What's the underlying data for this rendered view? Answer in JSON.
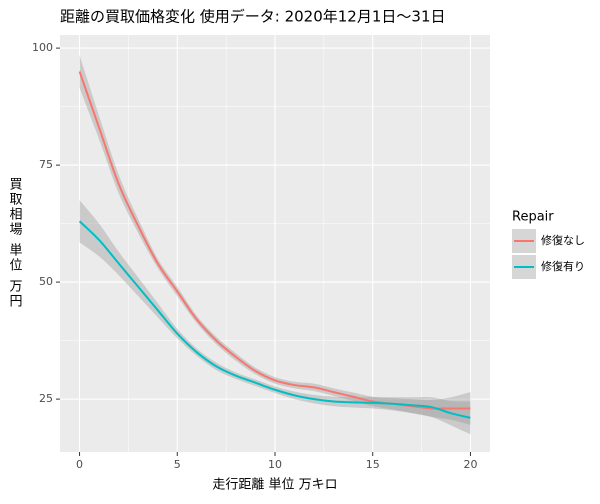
{
  "chart_data": {
    "type": "line",
    "title": "距離の買取価格変化 使用データ: 2020年12月1日〜31日",
    "x_label": "走行距離 単位 万キロ",
    "y_label": "買取相場 単位 万円",
    "x": [
      0,
      1,
      2,
      3,
      4,
      5,
      6,
      7,
      8,
      9,
      10,
      11,
      12,
      13,
      14,
      15,
      16,
      17,
      18,
      19,
      20
    ],
    "series": [
      {
        "name": "修復なし",
        "color": "#F8766D",
        "values": [
          95,
          83,
          71,
          62,
          54,
          48,
          42,
          37.5,
          34,
          31,
          29,
          28,
          27.5,
          26.5,
          25.5,
          24.5,
          24,
          23.5,
          23,
          23,
          23
        ],
        "lower": [
          91.5,
          80.5,
          69,
          60.5,
          53,
          47,
          41.2,
          36.7,
          33.2,
          30.3,
          28.3,
          27.3,
          26.7,
          25.7,
          24.6,
          23.5,
          22.8,
          22,
          21.2,
          20.6,
          19.5
        ],
        "upper": [
          98.5,
          85.5,
          73,
          63.5,
          55,
          49,
          42.8,
          38.3,
          34.8,
          31.7,
          29.7,
          28.7,
          28.3,
          27.3,
          26.4,
          25.5,
          25.2,
          25,
          24.8,
          25.4,
          26.5
        ]
      },
      {
        "name": "修復有り",
        "color": "#00BFC4",
        "values": [
          63,
          59,
          54,
          49,
          44,
          39,
          35,
          32,
          30,
          28.5,
          27,
          25.8,
          25,
          24.5,
          24.3,
          24.2,
          24,
          23.7,
          23.3,
          22,
          21
        ],
        "lower": [
          58.5,
          55.5,
          51.5,
          47,
          42.5,
          38,
          34.2,
          31.2,
          29.3,
          27.8,
          26.3,
          25,
          24.1,
          23.5,
          23.2,
          23,
          22.6,
          22,
          21.2,
          19.4,
          17.5
        ],
        "upper": [
          67.5,
          62.5,
          56.5,
          51,
          45.5,
          40,
          35.8,
          32.8,
          30.7,
          29.2,
          27.7,
          26.6,
          25.9,
          25.5,
          25.4,
          25.4,
          25.4,
          25.4,
          25.4,
          24.6,
          24.5
        ]
      }
    ],
    "band_color": "#999999",
    "xlim": [
      -1,
      21
    ],
    "ylim": [
      13.7,
      102.8
    ],
    "xticks": [
      0,
      5,
      10,
      15,
      20
    ],
    "yticks": [
      25,
      50,
      75,
      100
    ],
    "grid": true,
    "minor_grid": true,
    "legend_title": "Repair",
    "legend_position": "right"
  }
}
